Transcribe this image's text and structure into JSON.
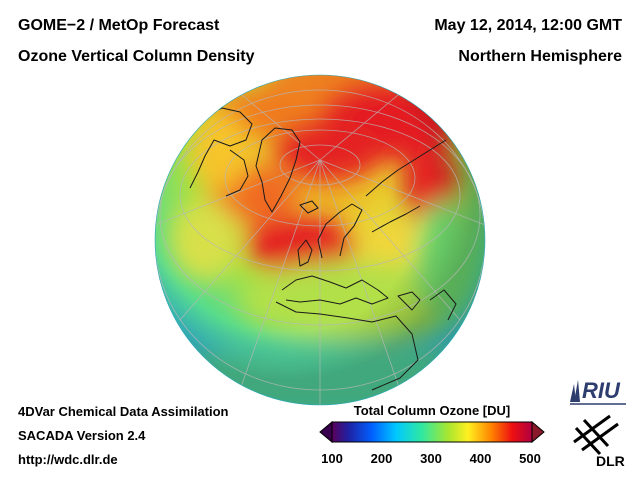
{
  "header": {
    "title_left_1": "GOME−2 / MetOp Forecast",
    "title_left_2": "Ozone Vertical Column Density",
    "title_right_1": "May 12, 2014, 12:00 GMT",
    "title_right_2": "Northern Hemisphere"
  },
  "footer": {
    "line1": "4DVar Chemical Data Assimilation",
    "line2": "SACADA Version 2.4",
    "line3": "http://wdc.dlr.de"
  },
  "colorbar": {
    "title": "Total Column Ozone [DU]",
    "ticks": [
      "100",
      "200",
      "300",
      "400",
      "500"
    ],
    "min": 100,
    "max": 500
  },
  "logos": {
    "riu": "RIU",
    "dlr": "DLR"
  },
  "colors": {
    "globe_edge": "#3fb8d8",
    "mid": "#9bdc3a",
    "high": "#ee2020",
    "peak": "#d40a2a"
  }
}
